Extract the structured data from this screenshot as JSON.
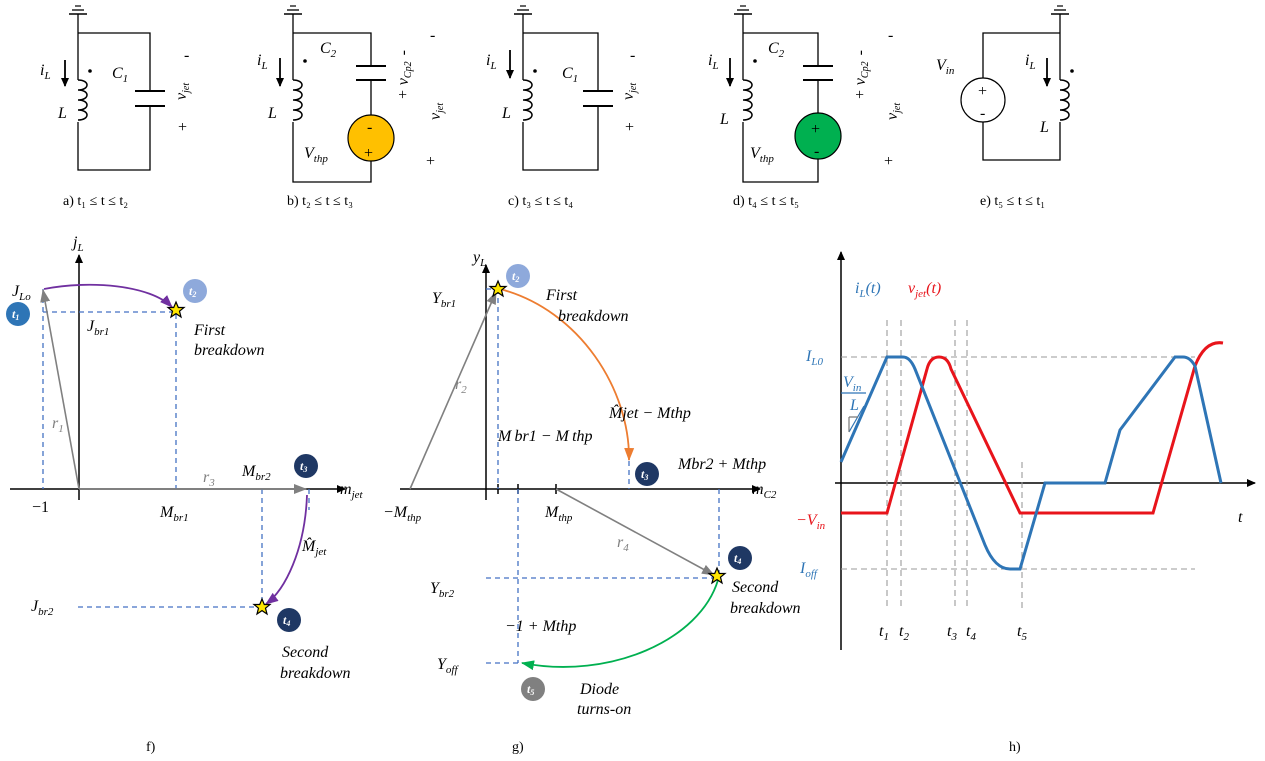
{
  "circuits": [
    {
      "id": "a",
      "caption": "a) t₁ ≤ t ≤ t₂",
      "current": "i",
      "current_sub": "L",
      "inductor": "L",
      "cap": "C",
      "cap_sub": "1",
      "voltage": "v",
      "voltage_sub": "jet",
      "plus": "+",
      "minus": "-"
    },
    {
      "id": "b",
      "caption": "b) t₂ ≤ t ≤ t₃",
      "current": "i",
      "current_sub": "L",
      "inductor": "L",
      "cap": "C",
      "cap_sub": "2",
      "cp_label": "+ v",
      "cp_sub": "Cp2",
      "cp_minus": "-",
      "source": "V",
      "source_sub": "thp",
      "source_top": "-",
      "source_bottom": "+",
      "voltage": "v",
      "voltage_sub": "jet",
      "plus": "+",
      "minus": "-",
      "source_color": "#FFC000"
    },
    {
      "id": "c",
      "caption": "c) t₃ ≤ t ≤ t₄",
      "current": "i",
      "current_sub": "L",
      "inductor": "L",
      "cap": "C",
      "cap_sub": "1",
      "voltage": "v",
      "voltage_sub": "jet",
      "plus": "+",
      "minus": "-"
    },
    {
      "id": "d",
      "caption": "d) t₄ ≤ t ≤ t₅",
      "current": "i",
      "current_sub": "L",
      "inductor": "L",
      "cap": "C",
      "cap_sub": "2",
      "cp_label": "+ v",
      "cp_sub": "Cp2",
      "cp_minus": "-",
      "source": "V",
      "source_sub": "thp",
      "source_top": "+",
      "source_bottom": "-",
      "voltage": "v",
      "voltage_sub": "jet",
      "plus": "+",
      "minus": "-",
      "source_color": "#00B050"
    },
    {
      "id": "e",
      "caption": "e) t₅ ≤ t ≤ t₁",
      "source": "V",
      "source_sub": "in",
      "source_top": "+",
      "source_bottom": "-",
      "current": "i",
      "current_sub": "L",
      "inductor": "L"
    }
  ],
  "plane_f": {
    "caption": "f)",
    "y_axis": "j",
    "y_axis_sub": "L",
    "x_axis": "m",
    "x_axis_sub": "jet",
    "jlo": "J",
    "jlo_sub": "Lo",
    "jbr1": "J",
    "jbr1_sub": "br1",
    "jbr2": "J",
    "jbr2_sub": "br2",
    "mbr1": "M",
    "mbr1_sub": "br1",
    "mbr2": "M",
    "mbr2_sub": "br2",
    "minus_one": "−1",
    "r1": "r",
    "r1_sub": "1",
    "r3": "r",
    "r3_sub": "3",
    "mjet": "M̂",
    "mjet_sub": "jet",
    "first_breakdown": [
      "First",
      "breakdown"
    ],
    "second_breakdown": [
      "Second",
      "breakdown"
    ],
    "badges": [
      "t1",
      "t2",
      "t3",
      "t4"
    ]
  },
  "plane_g": {
    "caption": "g)",
    "y_axis": "y",
    "y_axis_sub": "L",
    "x_axis": "m",
    "x_axis_sub": "C2",
    "ybr1": "Y",
    "ybr1_sub": "br1",
    "ybr2": "Y",
    "ybr2_sub": "br2",
    "yoff": "Y",
    "yoff_sub": "off",
    "neg_mthp": "−M",
    "neg_mthp_sub": "thp",
    "mthp": "M",
    "mthp_sub": "thp",
    "r2": "r",
    "r2_sub": "2",
    "r4": "r",
    "r4_sub": "4",
    "label_mbr1": "M br1 − M thp",
    "label_mjet": "M̂jet − Mthp",
    "label_mbr2": "Mbr2 + Mthp",
    "label_neg1": "−1 + Mthp",
    "first_breakdown": [
      "First",
      "breakdown"
    ],
    "second_breakdown": [
      "Second",
      "breakdown"
    ],
    "diode": [
      "Diode",
      "turns-on"
    ],
    "badges": [
      "t2",
      "t3",
      "t4",
      "t5"
    ]
  },
  "plane_h": {
    "caption": "h)",
    "legend_il": "i",
    "legend_il_sub": "L",
    "legend_il_tail": "(t)",
    "legend_vjet": "v",
    "legend_vjet_sub": "jet",
    "legend_vjet_tail": "(t)",
    "il0": "I",
    "il0_sub": "L0",
    "vin_over_l": "V",
    "vin_over_l_sub": "in",
    "vin_over_l_den": "L",
    "neg_vin": "−V",
    "neg_vin_sub": "in",
    "ioff": "I",
    "ioff_sub": "off",
    "t_axis": "t",
    "ticks": [
      {
        "t": "t",
        "s": "1"
      },
      {
        "t": "t",
        "s": "2"
      },
      {
        "t": "t",
        "s": "3"
      },
      {
        "t": "t",
        "s": "4"
      },
      {
        "t": "t",
        "s": "5"
      }
    ],
    "color_il": "#2E75B6",
    "color_vjet": "#E8141B"
  },
  "colors": {
    "badge_light": "#8EA9DB",
    "badge_mid": "#2E75B6",
    "badge_dark": "#1F3864",
    "badge_grey": "#808080",
    "arc_purple": "#7030A0",
    "arc_orange": "#ED7D31",
    "arc_green": "#00B050",
    "radius_grey": "#808080",
    "dash_blue": "#4472C4"
  }
}
